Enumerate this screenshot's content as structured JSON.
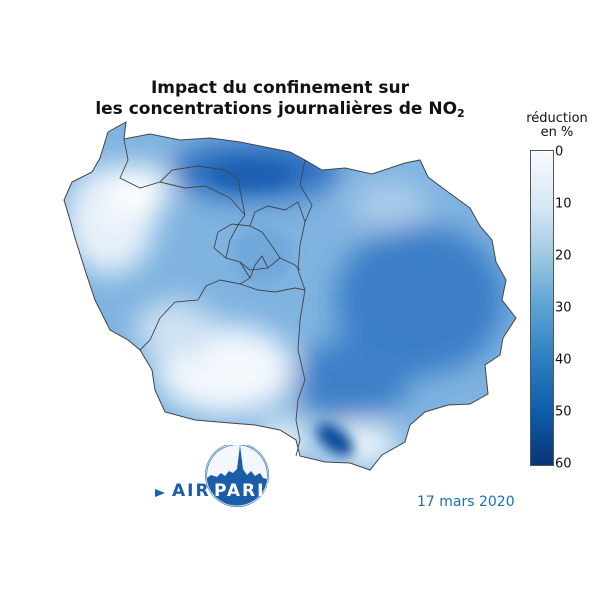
{
  "title_line1": "Impact du confinement sur",
  "title_line2": "les concentrations journalières de NO",
  "title_subscript": "2",
  "legend": {
    "title_line1": "réduction",
    "title_line2": "en %",
    "ticks": [
      "0",
      "10",
      "20",
      "30",
      "40",
      "50",
      "60"
    ],
    "range": [
      0,
      60
    ],
    "colors": [
      "#f7fbff",
      "#c6dbef",
      "#6baed6",
      "#2171b5",
      "#08306b"
    ]
  },
  "date": "17 mars 2020",
  "logo": {
    "part1": "AIR",
    "part2": "PARIF",
    "brand_color": "#1a5ea8"
  },
  "map": {
    "region": "Île-de-France",
    "pollutant": "NO2"
  }
}
